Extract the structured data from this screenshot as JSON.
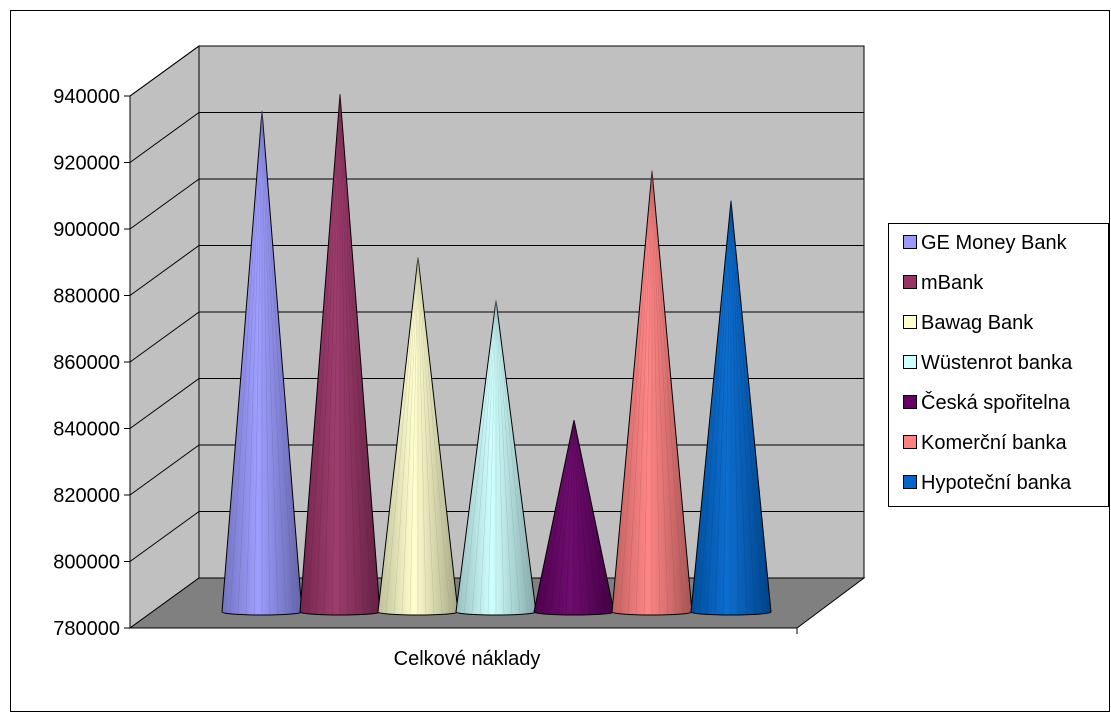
{
  "chart_data": {
    "type": "bar",
    "categories": [
      "Celkové náklady"
    ],
    "series": [
      {
        "name": "GE Money Bank",
        "values": [
          928000
        ],
        "color": "#9999FF"
      },
      {
        "name": "mBank",
        "values": [
          933000
        ],
        "color": "#993366"
      },
      {
        "name": "Bawag Bank",
        "values": [
          884000
        ],
        "color": "#FFFFCC"
      },
      {
        "name": "Wüstenrot banka",
        "values": [
          871000
        ],
        "color": "#CCFFFF"
      },
      {
        "name": "Česká spořitelna",
        "values": [
          835000
        ],
        "color": "#660066"
      },
      {
        "name": "Komerční banka",
        "values": [
          910000
        ],
        "color": "#FF8080"
      },
      {
        "name": "Hypoteční banka",
        "values": [
          901000
        ],
        "color": "#0066CC"
      }
    ],
    "ylim": [
      780000,
      940000
    ],
    "yticks": [
      "780000",
      "800000",
      "820000",
      "840000",
      "860000",
      "880000",
      "900000",
      "920000",
      "940000"
    ],
    "grid": true,
    "legend": "right",
    "wall_color": "#C0C0C0",
    "floor_color": "#808080"
  }
}
